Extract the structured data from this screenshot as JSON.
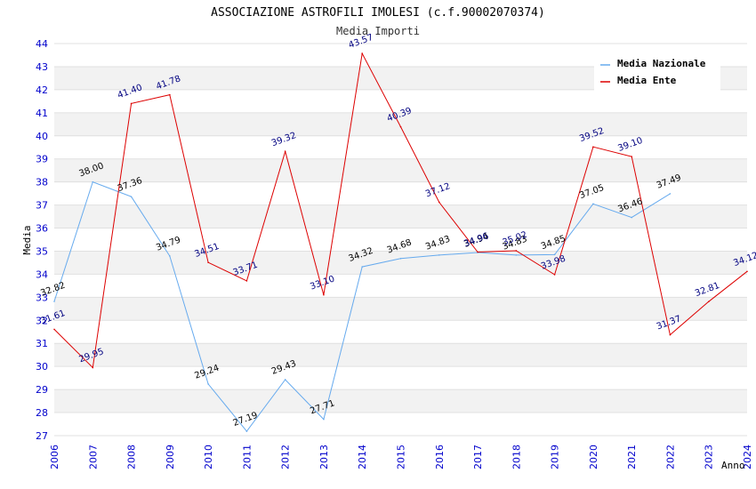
{
  "chart_data": {
    "type": "line",
    "title": "ASSOCIAZIONE ASTROFILI IMOLESI (c.f.90002070374)",
    "subtitle": "Media Importi",
    "xlabel": "Anno",
    "ylabel": "Media",
    "ylim": [
      27,
      44
    ],
    "yticks": [
      27,
      28,
      29,
      30,
      31,
      32,
      33,
      34,
      35,
      36,
      37,
      38,
      39,
      40,
      41,
      42,
      43,
      44
    ],
    "x": [
      2006,
      2007,
      2008,
      2009,
      2010,
      2011,
      2012,
      2013,
      2014,
      2015,
      2016,
      2017,
      2018,
      2019,
      2020,
      2021,
      2022,
      2023,
      2024
    ],
    "grid": true,
    "legend_position": "top-right",
    "series": [
      {
        "name": "Media Nazionale",
        "color": "#66aaee",
        "values": [
          32.82,
          38.0,
          37.36,
          34.79,
          29.24,
          27.19,
          29.43,
          27.71,
          34.32,
          34.68,
          34.83,
          34.94,
          34.83,
          34.85,
          37.05,
          36.46,
          37.49,
          null,
          null
        ],
        "labels": [
          "32.82",
          "38.00",
          "37.36",
          "34.79",
          "29.24",
          "27.19",
          "29.43",
          "27.71",
          "34.32",
          "34.68",
          "34.83",
          "34.94",
          "34.83",
          "34.85",
          "37.05",
          "36.46",
          "37.49",
          "",
          ""
        ]
      },
      {
        "name": "Media Ente",
        "color": "#dd0000",
        "values": [
          31.61,
          29.95,
          41.4,
          41.78,
          34.51,
          33.71,
          39.32,
          33.1,
          43.57,
          40.39,
          37.12,
          34.96,
          35.02,
          33.98,
          39.52,
          39.1,
          31.37,
          32.81,
          34.12
        ],
        "labels": [
          "31.61",
          "29.95",
          "41.40",
          "41.78",
          "34.51",
          "33.71",
          "39.32",
          "33.10",
          "43.57",
          "40.39",
          "37.12",
          "34.96",
          "35.02",
          "33.98",
          "39.52",
          "39.10",
          "31.37",
          "32.81",
          "34.12"
        ]
      }
    ]
  }
}
